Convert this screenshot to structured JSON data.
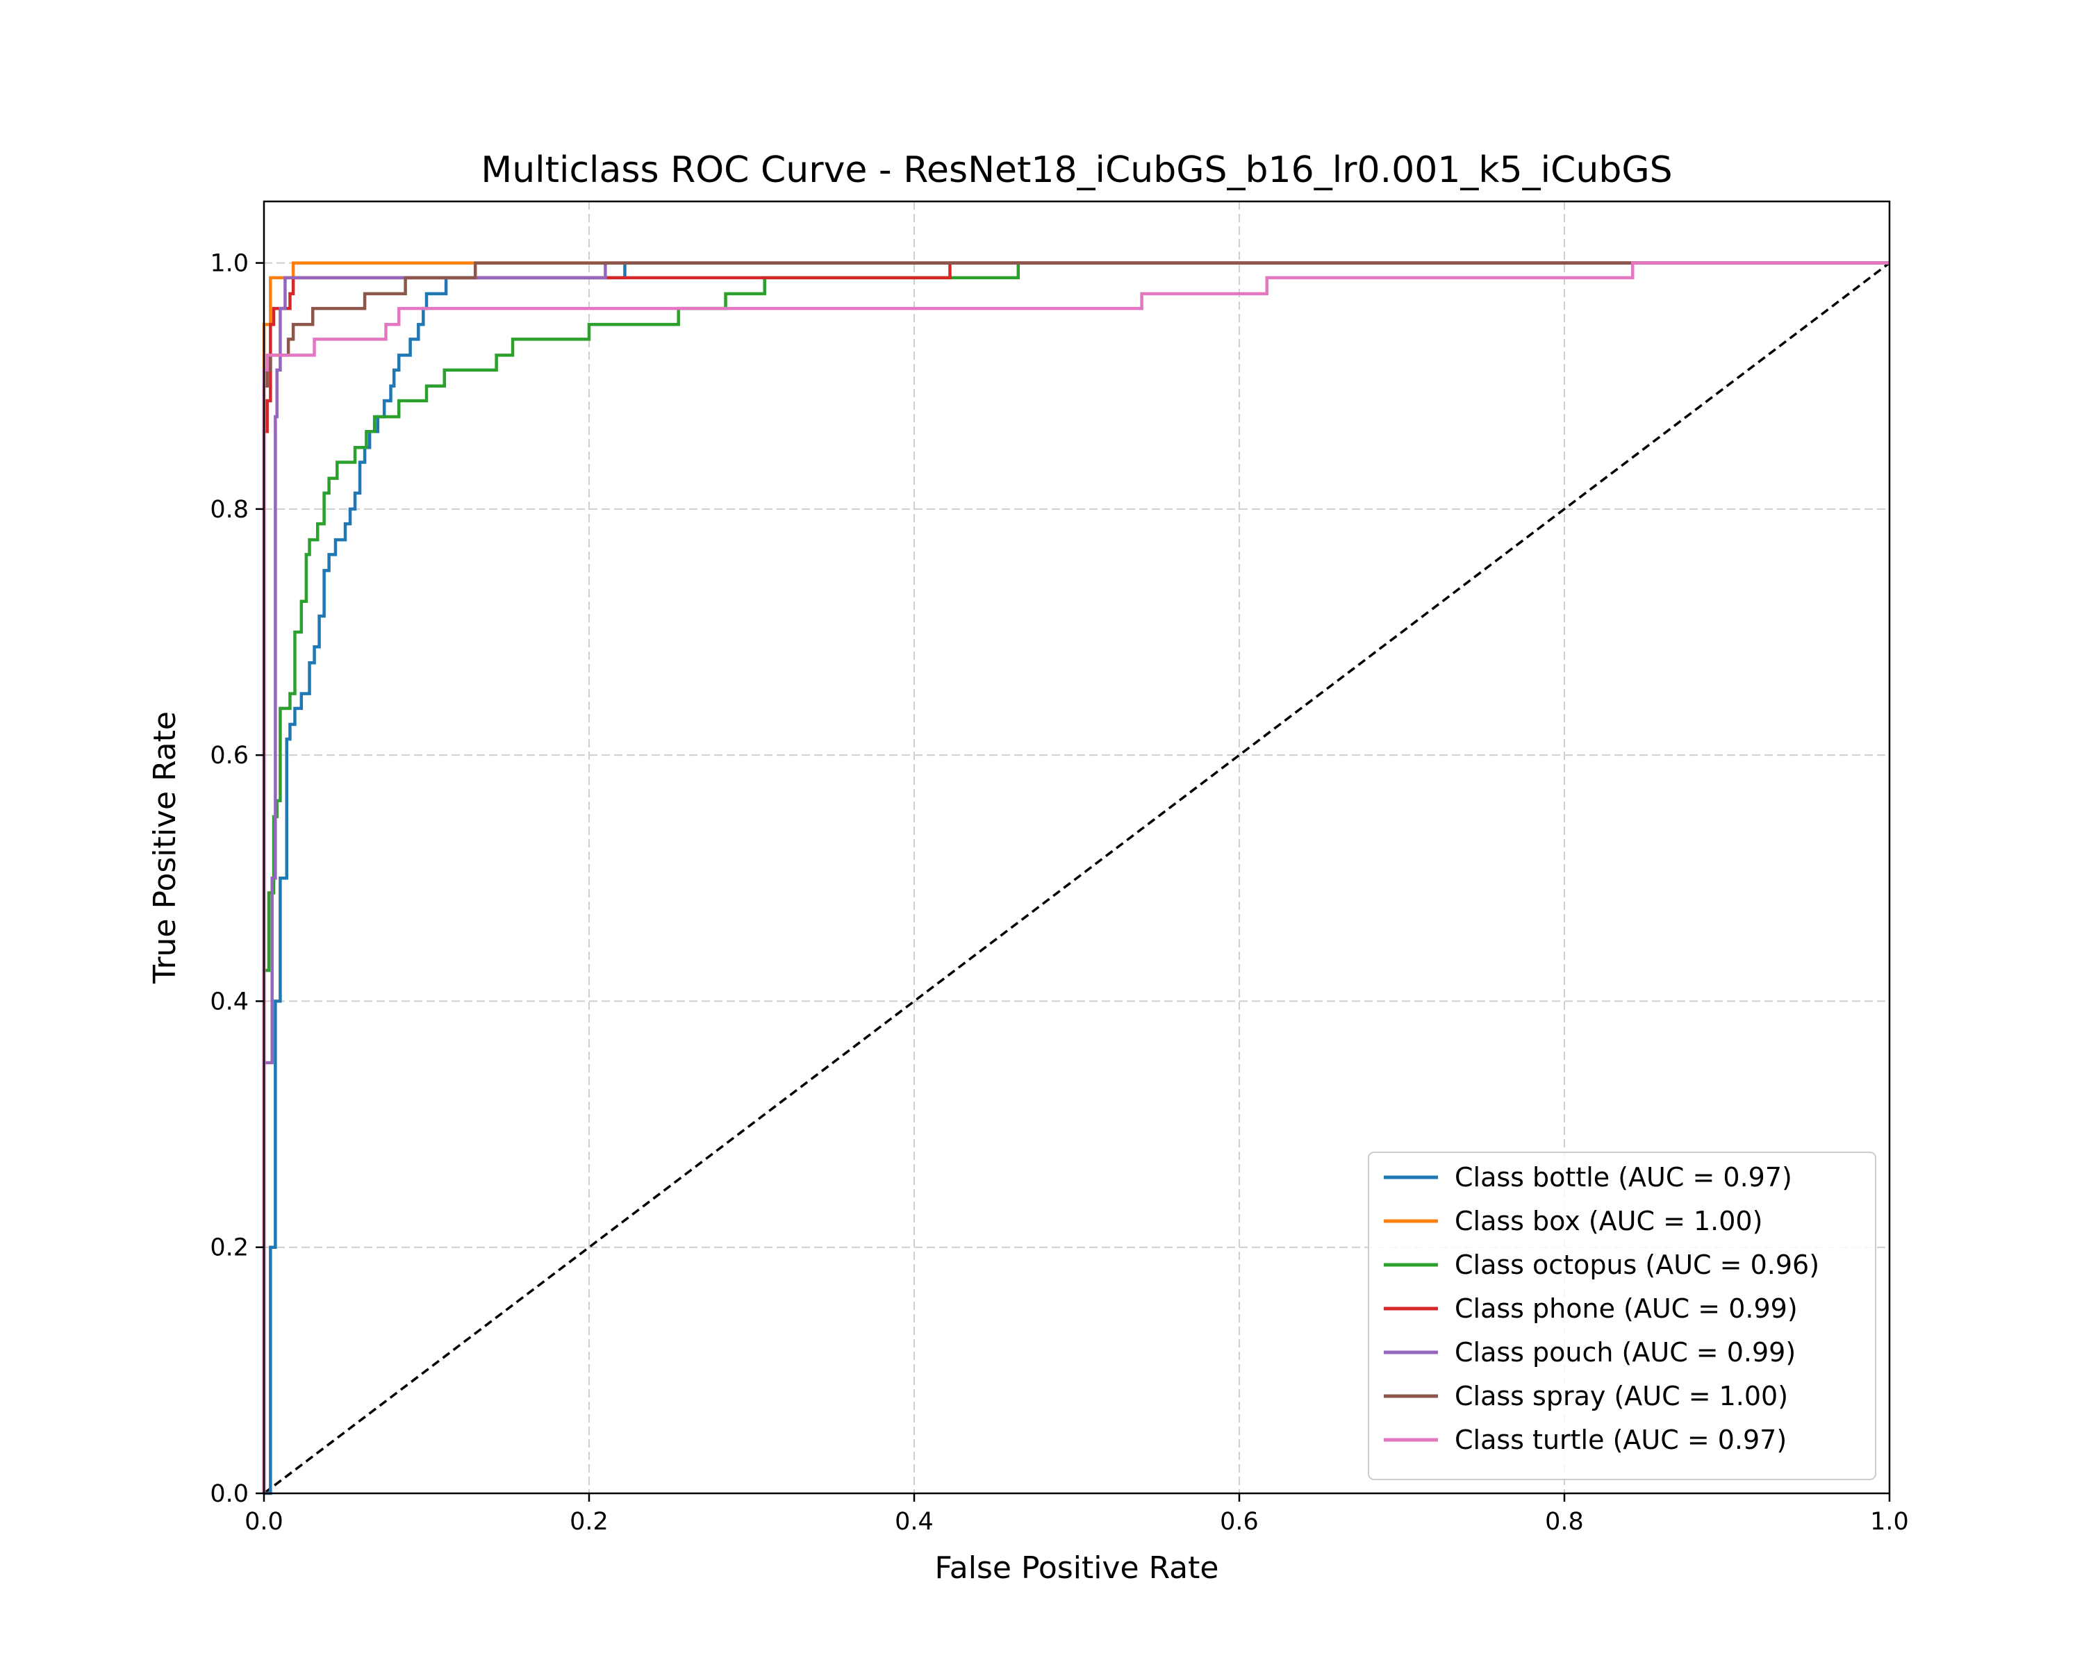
{
  "chart_data": {
    "type": "line",
    "title": "Multiclass ROC Curve - ResNet18_iCubGS_b16_lr0.001_k5_iCubGS",
    "xlabel": "False Positive Rate",
    "ylabel": "True Positive Rate",
    "xlim": [
      0.0,
      1.0
    ],
    "ylim": [
      0.0,
      1.05
    ],
    "xticks": [
      0.0,
      0.2,
      0.4,
      0.6,
      0.8,
      1.0
    ],
    "xtick_labels": [
      "0.0",
      "0.2",
      "0.4",
      "0.6",
      "0.8",
      "1.0"
    ],
    "yticks": [
      0.0,
      0.2,
      0.4,
      0.6,
      0.8,
      1.0
    ],
    "ytick_labels": [
      "0.0",
      "0.2",
      "0.4",
      "0.6",
      "0.8",
      "1.0"
    ],
    "grid": true,
    "grid_style": "dashed",
    "legend_position": "lower-right",
    "diagonal": {
      "x": [
        0,
        1
      ],
      "y": [
        0,
        1
      ],
      "color": "#000000",
      "style": "dashed"
    },
    "series": [
      {
        "name": "Class bottle (AUC = 0.97)",
        "color": "#1f77b4",
        "x": [
          0.0,
          0.004,
          0.004,
          0.007,
          0.007,
          0.01,
          0.01,
          0.014,
          0.014,
          0.016,
          0.016,
          0.019,
          0.019,
          0.023,
          0.023,
          0.028,
          0.028,
          0.031,
          0.031,
          0.034,
          0.034,
          0.037,
          0.037,
          0.04,
          0.04,
          0.044,
          0.044,
          0.05,
          0.05,
          0.053,
          0.053,
          0.056,
          0.056,
          0.059,
          0.059,
          0.062,
          0.062,
          0.065,
          0.065,
          0.07,
          0.07,
          0.074,
          0.074,
          0.078,
          0.078,
          0.08,
          0.08,
          0.083,
          0.083,
          0.09,
          0.09,
          0.095,
          0.095,
          0.098,
          0.098,
          0.1,
          0.1,
          0.112,
          0.112,
          0.132,
          0.132,
          0.222,
          0.222,
          1.0
        ],
        "y": [
          0.0,
          0.0,
          0.2,
          0.2,
          0.4,
          0.4,
          0.5,
          0.5,
          0.613,
          0.613,
          0.625,
          0.625,
          0.638,
          0.638,
          0.65,
          0.65,
          0.675,
          0.675,
          0.688,
          0.688,
          0.713,
          0.713,
          0.75,
          0.75,
          0.763,
          0.763,
          0.775,
          0.775,
          0.788,
          0.788,
          0.8,
          0.8,
          0.813,
          0.813,
          0.838,
          0.838,
          0.85,
          0.85,
          0.863,
          0.863,
          0.875,
          0.875,
          0.888,
          0.888,
          0.9,
          0.9,
          0.913,
          0.913,
          0.925,
          0.925,
          0.938,
          0.938,
          0.95,
          0.95,
          0.963,
          0.963,
          0.975,
          0.975,
          0.988,
          0.988,
          0.988,
          0.988,
          1.0,
          1.0
        ]
      },
      {
        "name": "Class box (AUC = 1.00)",
        "color": "#ff7f0e",
        "x": [
          0.0,
          0.0,
          0.004,
          0.004,
          0.018,
          0.018,
          1.0
        ],
        "y": [
          0.0,
          0.95,
          0.95,
          0.988,
          0.988,
          1.0,
          1.0
        ]
      },
      {
        "name": "Class octopus (AUC = 0.96)",
        "color": "#2ca02c",
        "x": [
          0.0,
          0.0,
          0.003,
          0.003,
          0.006,
          0.006,
          0.008,
          0.008,
          0.01,
          0.01,
          0.016,
          0.016,
          0.019,
          0.019,
          0.023,
          0.023,
          0.026,
          0.026,
          0.028,
          0.028,
          0.033,
          0.033,
          0.037,
          0.037,
          0.04,
          0.04,
          0.045,
          0.045,
          0.056,
          0.056,
          0.063,
          0.063,
          0.068,
          0.068,
          0.083,
          0.083,
          0.1,
          0.1,
          0.111,
          0.111,
          0.143,
          0.143,
          0.153,
          0.153,
          0.2,
          0.2,
          0.255,
          0.255,
          0.284,
          0.284,
          0.308,
          0.308,
          0.402,
          0.402,
          0.464,
          0.464,
          1.0
        ],
        "y": [
          0.0,
          0.425,
          0.425,
          0.488,
          0.488,
          0.55,
          0.55,
          0.563,
          0.563,
          0.638,
          0.638,
          0.65,
          0.65,
          0.7,
          0.7,
          0.725,
          0.725,
          0.763,
          0.763,
          0.775,
          0.775,
          0.788,
          0.788,
          0.813,
          0.813,
          0.825,
          0.825,
          0.838,
          0.838,
          0.85,
          0.85,
          0.863,
          0.863,
          0.875,
          0.875,
          0.888,
          0.888,
          0.9,
          0.9,
          0.913,
          0.913,
          0.925,
          0.925,
          0.938,
          0.938,
          0.95,
          0.95,
          0.963,
          0.963,
          0.975,
          0.975,
          0.988,
          0.988,
          0.988,
          0.988,
          1.0,
          1.0
        ]
      },
      {
        "name": "Class phone (AUC = 0.99)",
        "color": "#d62728",
        "x": [
          0.0,
          0.0,
          0.002,
          0.002,
          0.004,
          0.004,
          0.006,
          0.006,
          0.011,
          0.011,
          0.016,
          0.016,
          0.018,
          0.018,
          0.21,
          0.21,
          0.422,
          0.422,
          1.0
        ],
        "y": [
          0.0,
          0.863,
          0.863,
          0.888,
          0.888,
          0.95,
          0.95,
          0.963,
          0.963,
          0.963,
          0.963,
          0.975,
          0.975,
          0.988,
          0.988,
          0.988,
          0.988,
          1.0,
          1.0
        ]
      },
      {
        "name": "Class pouch (AUC = 0.99)",
        "color": "#9467bd",
        "x": [
          0.0,
          0.0,
          0.005,
          0.005,
          0.007,
          0.007,
          0.008,
          0.008,
          0.01,
          0.01,
          0.013,
          0.013,
          0.02,
          0.02,
          0.21,
          0.21,
          1.0
        ],
        "y": [
          0.0,
          0.35,
          0.35,
          0.5,
          0.5,
          0.875,
          0.875,
          0.913,
          0.913,
          0.963,
          0.963,
          0.988,
          0.988,
          0.988,
          0.988,
          1.0,
          1.0
        ]
      },
      {
        "name": "Class spray (AUC = 1.00)",
        "color": "#8c564b",
        "x": [
          0.0,
          0.0,
          0.002,
          0.002,
          0.004,
          0.004,
          0.015,
          0.015,
          0.018,
          0.018,
          0.03,
          0.03,
          0.062,
          0.062,
          0.087,
          0.087,
          0.13,
          0.13,
          0.84,
          0.84,
          1.0
        ],
        "y": [
          0.0,
          0.9,
          0.9,
          0.913,
          0.913,
          0.925,
          0.925,
          0.938,
          0.938,
          0.95,
          0.95,
          0.963,
          0.963,
          0.975,
          0.975,
          0.988,
          0.988,
          1.0,
          1.0,
          1.0,
          1.0
        ]
      },
      {
        "name": "Class turtle (AUC = 0.97)",
        "color": "#e377c2",
        "x": [
          0.0,
          0.0,
          0.002,
          0.002,
          0.007,
          0.007,
          0.031,
          0.031,
          0.075,
          0.075,
          0.083,
          0.083,
          0.54,
          0.54,
          0.617,
          0.617,
          0.842,
          0.842,
          1.0
        ],
        "y": [
          0.0,
          0.913,
          0.913,
          0.925,
          0.925,
          0.925,
          0.925,
          0.938,
          0.938,
          0.95,
          0.95,
          0.963,
          0.963,
          0.975,
          0.975,
          0.988,
          0.988,
          1.0,
          1.0
        ]
      }
    ]
  }
}
